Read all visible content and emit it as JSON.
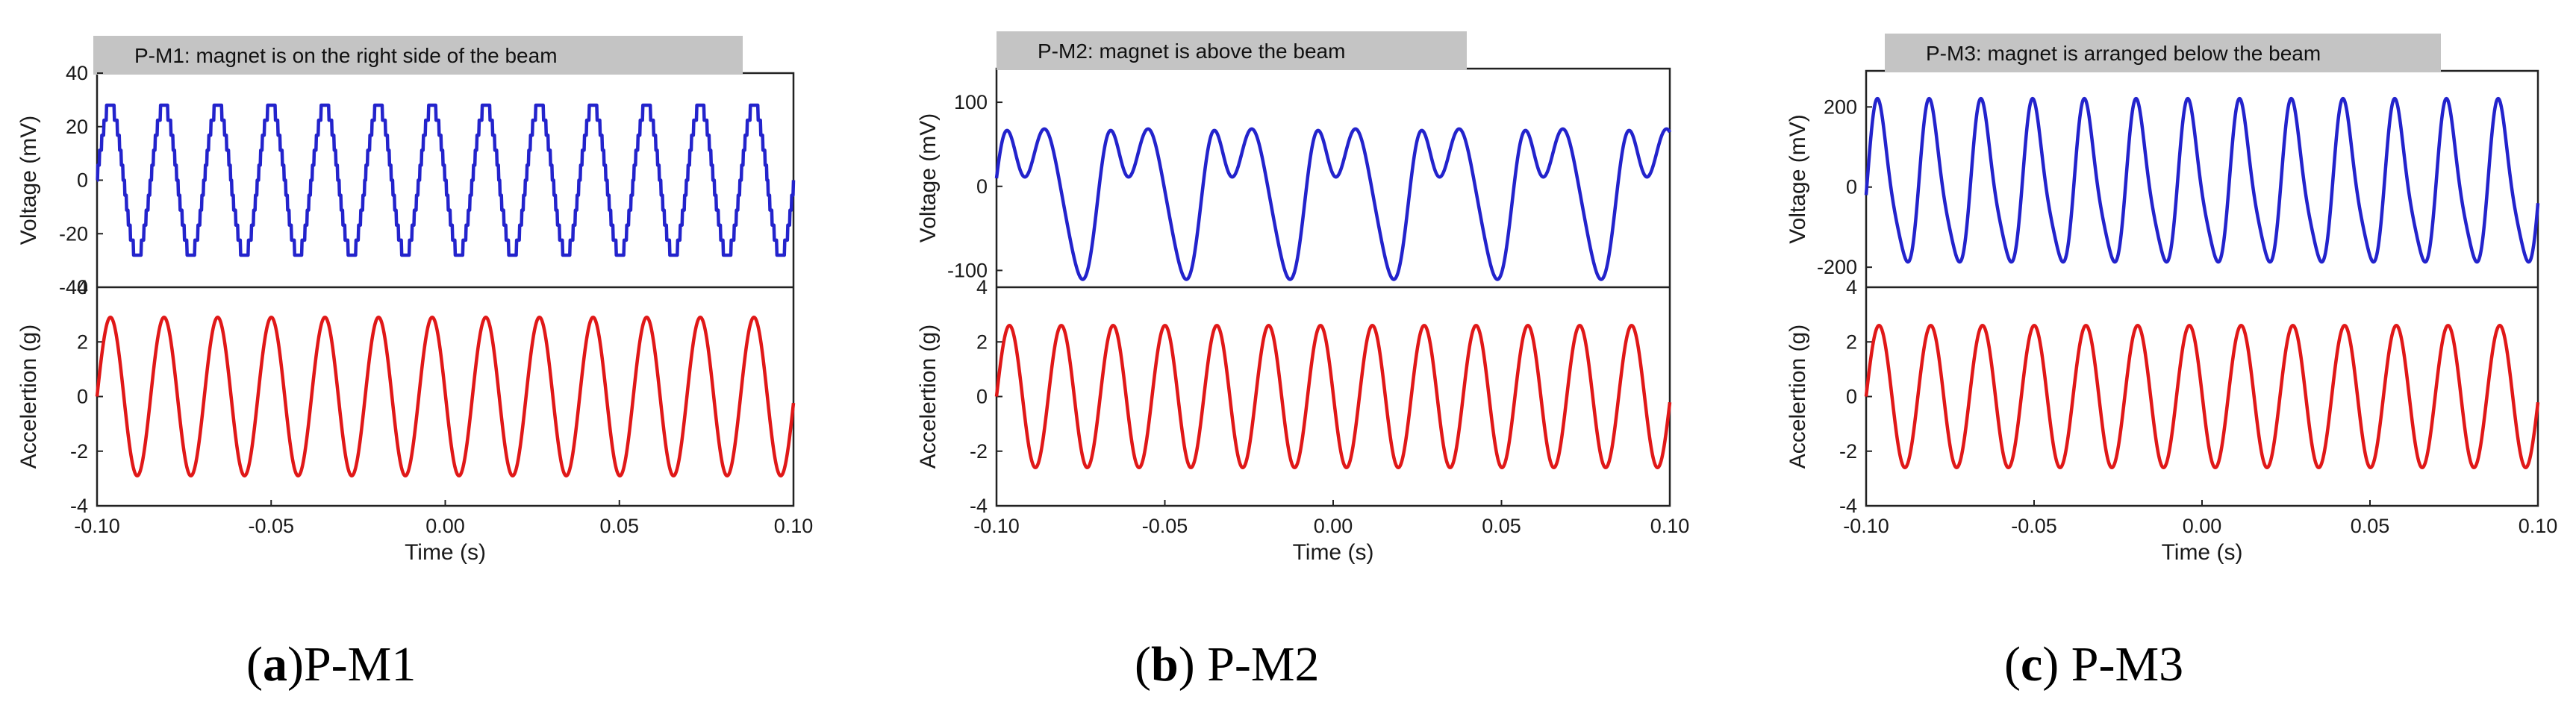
{
  "chart_data": [
    {
      "type": "line",
      "panel": "a",
      "caption_letter": "a",
      "caption_text": "P-M1",
      "title": "P-M1: magnet is on the right side of the beam",
      "xlabel": "Time (s)",
      "xlim": [
        -0.1,
        0.1
      ],
      "xticks": [
        "-0.10",
        "-0.05",
        "0.00",
        "0.05",
        "0.10"
      ],
      "top": {
        "ylabel": "Voltage (mV)",
        "ylim": [
          -40,
          40
        ],
        "yticks": [
          "-40",
          "-20",
          "0",
          "20",
          "40"
        ],
        "color": "#2323cc",
        "waveform": "staircase",
        "amplitude": 28,
        "frequency_hz": 65,
        "period_s": 0.0154,
        "series_name": "Voltage"
      },
      "bottom": {
        "ylabel": "Accelertion (g)",
        "ylim": [
          -4,
          4
        ],
        "yticks": [
          "-4",
          "-2",
          "0",
          "2",
          "4"
        ],
        "color": "#e01818",
        "waveform": "sine",
        "amplitude": 2.9,
        "frequency_hz": 65,
        "period_s": 0.0154,
        "series_name": "Acceleration"
      }
    },
    {
      "type": "line",
      "panel": "b",
      "caption_letter": "b",
      "caption_text": " P-M2",
      "title": "P-M2: magnet is above the beam",
      "xlabel": "Time (s)",
      "xlim": [
        -0.1,
        0.1
      ],
      "xticks": [
        "-0.10",
        "-0.05",
        "0.00",
        "0.05",
        "0.10"
      ],
      "top": {
        "ylabel": "Voltage (mV)",
        "ylim": [
          -120,
          140
        ],
        "yticks": [
          "-100",
          "0",
          "100"
        ],
        "color": "#2323cc",
        "waveform": "double-peak",
        "amplitude": 110,
        "secondary_peak": 55,
        "frequency_hz": 32.5,
        "period_s": 0.0308,
        "series_name": "Voltage"
      },
      "bottom": {
        "ylabel": "Accelertion (g)",
        "ylim": [
          -4,
          4
        ],
        "yticks": [
          "-4",
          "-2",
          "0",
          "2",
          "4"
        ],
        "color": "#e01818",
        "waveform": "sine",
        "amplitude": 2.6,
        "frequency_hz": 65,
        "period_s": 0.0154,
        "series_name": "Acceleration"
      }
    },
    {
      "type": "line",
      "panel": "c",
      "caption_letter": "c",
      "caption_text": " P-M3",
      "title": "P-M3: magnet is arranged below the beam",
      "xlabel": "Time (s)",
      "xlim": [
        -0.1,
        0.1
      ],
      "xticks": [
        "-0.10",
        "-0.05",
        "0.00",
        "0.05",
        "0.10"
      ],
      "top": {
        "ylabel": "Voltage (mV)",
        "ylim": [
          -250,
          290
        ],
        "yticks": [
          "-200",
          "0",
          "200"
        ],
        "color": "#2323cc",
        "waveform": "skewed-sine",
        "amplitude": 205,
        "frequency_hz": 65,
        "period_s": 0.0154,
        "series_name": "Voltage"
      },
      "bottom": {
        "ylabel": "Accelertion (g)",
        "ylim": [
          -4,
          4
        ],
        "yticks": [
          "-4",
          "-2",
          "0",
          "2",
          "4"
        ],
        "color": "#e01818",
        "waveform": "sine",
        "amplitude": 2.6,
        "frequency_hz": 65,
        "period_s": 0.0154,
        "series_name": "Acceleration"
      }
    }
  ]
}
